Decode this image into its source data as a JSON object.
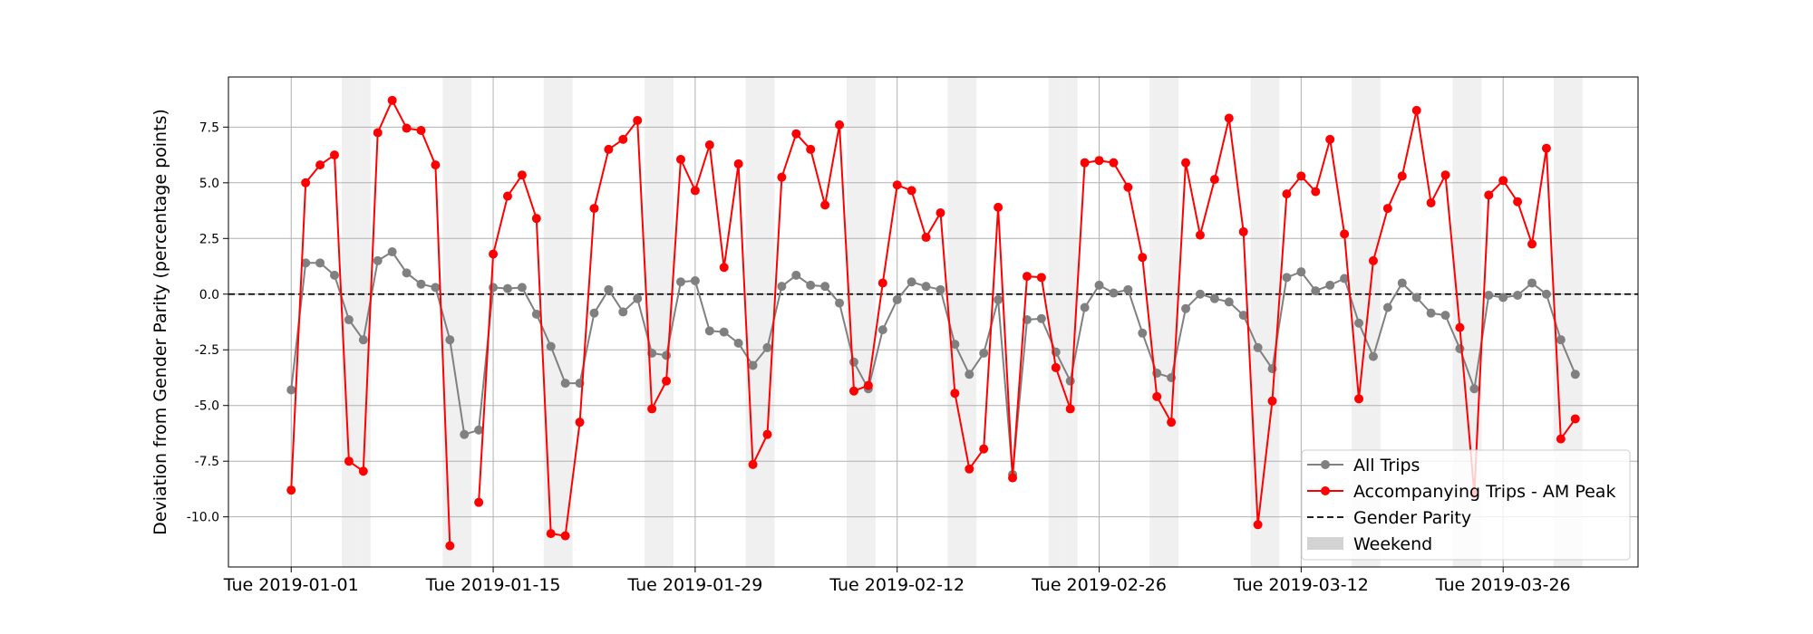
{
  "chart_data": {
    "type": "line",
    "ylabel": "Deviation from Gender Parity (percentage points)",
    "xlabel": "",
    "title": "",
    "x_start": "2019-01-01",
    "x": [
      "2019-01-01",
      "2019-01-02",
      "2019-01-03",
      "2019-01-04",
      "2019-01-05",
      "2019-01-06",
      "2019-01-07",
      "2019-01-08",
      "2019-01-09",
      "2019-01-10",
      "2019-01-11",
      "2019-01-12",
      "2019-01-13",
      "2019-01-14",
      "2019-01-15",
      "2019-01-16",
      "2019-01-17",
      "2019-01-18",
      "2019-01-19",
      "2019-01-20",
      "2019-01-21",
      "2019-01-22",
      "2019-01-23",
      "2019-01-24",
      "2019-01-25",
      "2019-01-26",
      "2019-01-27",
      "2019-01-28",
      "2019-01-29",
      "2019-01-30",
      "2019-01-31",
      "2019-02-01",
      "2019-02-02",
      "2019-02-03",
      "2019-02-04",
      "2019-02-05",
      "2019-02-06",
      "2019-02-07",
      "2019-02-08",
      "2019-02-09",
      "2019-02-10",
      "2019-02-11",
      "2019-02-12",
      "2019-02-13",
      "2019-02-14",
      "2019-02-15",
      "2019-02-16",
      "2019-02-17",
      "2019-02-18",
      "2019-02-19",
      "2019-02-20",
      "2019-02-21",
      "2019-02-22",
      "2019-02-23",
      "2019-02-24",
      "2019-02-25",
      "2019-02-26",
      "2019-02-27",
      "2019-02-28",
      "2019-03-01",
      "2019-03-02",
      "2019-03-03",
      "2019-03-04",
      "2019-03-05",
      "2019-03-06",
      "2019-03-07",
      "2019-03-08",
      "2019-03-09",
      "2019-03-10",
      "2019-03-11",
      "2019-03-12",
      "2019-03-13",
      "2019-03-14",
      "2019-03-15",
      "2019-03-16",
      "2019-03-17",
      "2019-03-18",
      "2019-03-19",
      "2019-03-20",
      "2019-03-21",
      "2019-03-22",
      "2019-03-23",
      "2019-03-24",
      "2019-03-25",
      "2019-03-26",
      "2019-03-27",
      "2019-03-28",
      "2019-03-29",
      "2019-03-30",
      "2019-03-31"
    ],
    "series": [
      {
        "name": "All Trips",
        "color": "#808080",
        "values": [
          -4.3,
          1.4,
          1.4,
          0.85,
          -1.15,
          -2.05,
          1.5,
          1.9,
          0.95,
          0.45,
          0.3,
          -2.05,
          -6.3,
          -6.1,
          0.3,
          0.25,
          0.3,
          -0.9,
          -2.35,
          -4.0,
          -4.0,
          -0.85,
          0.2,
          -0.8,
          -0.2,
          -2.65,
          -2.75,
          0.55,
          0.6,
          -1.65,
          -1.7,
          -2.2,
          -3.2,
          -2.4,
          0.35,
          0.85,
          0.4,
          0.35,
          -0.4,
          -3.05,
          -4.25,
          -1.6,
          -0.25,
          0.55,
          0.35,
          0.2,
          -2.25,
          -3.6,
          -2.65,
          -0.25,
          -8.1,
          -1.15,
          -1.1,
          -2.6,
          -3.9,
          -0.6,
          0.4,
          0.05,
          0.2,
          -1.75,
          -3.55,
          -3.75,
          -0.65,
          0.0,
          -0.2,
          -0.35,
          -0.95,
          -2.4,
          -3.35,
          0.75,
          1.0,
          0.15,
          0.4,
          0.7,
          -1.3,
          -2.8,
          -0.6,
          0.5,
          -0.15,
          -0.85,
          -0.95,
          -2.45,
          -4.25,
          -0.05,
          -0.15,
          -0.05,
          0.5,
          0.0,
          -2.05,
          -3.6
        ]
      },
      {
        "name": "Accompanying Trips - AM Peak",
        "color": "#ff0000",
        "values": [
          -8.8,
          5.0,
          5.8,
          6.25,
          -7.5,
          -7.95,
          7.25,
          8.7,
          7.45,
          7.35,
          5.8,
          -11.3,
          null,
          -9.35,
          1.8,
          4.4,
          5.35,
          3.4,
          -10.75,
          -10.85,
          -5.75,
          3.85,
          6.5,
          6.95,
          7.8,
          -5.15,
          -3.9,
          6.05,
          4.65,
          6.7,
          1.2,
          5.85,
          -7.65,
          -6.3,
          5.25,
          7.2,
          6.5,
          4.0,
          7.6,
          -4.35,
          -4.1,
          0.5,
          4.9,
          4.65,
          2.55,
          3.65,
          -4.45,
          -7.85,
          -6.95,
          3.9,
          -8.25,
          0.8,
          0.75,
          -3.3,
          -5.15,
          5.9,
          6.0,
          5.9,
          4.8,
          1.65,
          -4.6,
          -5.75,
          5.9,
          2.65,
          5.15,
          7.9,
          2.8,
          -10.35,
          -4.8,
          4.5,
          5.3,
          4.6,
          6.95,
          2.7,
          -4.7,
          1.5,
          3.85,
          5.3,
          8.25,
          4.1,
          5.35,
          -1.5,
          -8.95,
          4.45,
          5.1,
          4.15,
          2.25,
          6.55,
          -6.5,
          -5.6
        ]
      }
    ],
    "reference_line": {
      "name": "Gender Parity",
      "y": 0,
      "color": "#000000"
    },
    "weekend": {
      "name": "Weekend",
      "color": "#d3d3d3"
    },
    "ylim": [
      -12.25,
      9.75
    ],
    "yticks": [
      -10.0,
      -7.5,
      -5.0,
      -2.5,
      0.0,
      2.5,
      5.0,
      7.5
    ],
    "xticks": [
      "2019-01-01",
      "2019-01-15",
      "2019-01-29",
      "2019-02-12",
      "2019-02-26",
      "2019-03-12",
      "2019-03-26"
    ],
    "xtick_labels": [
      "Tue 2019-01-01",
      "Tue 2019-01-15",
      "Tue 2019-01-29",
      "Tue 2019-02-12",
      "Tue 2019-02-26",
      "Tue 2019-03-12",
      "Tue 2019-03-26"
    ],
    "grid": true,
    "legend_position": "lower-right",
    "legend": [
      "All Trips",
      "Accompanying Trips - AM Peak",
      "Gender Parity",
      "Weekend"
    ]
  }
}
